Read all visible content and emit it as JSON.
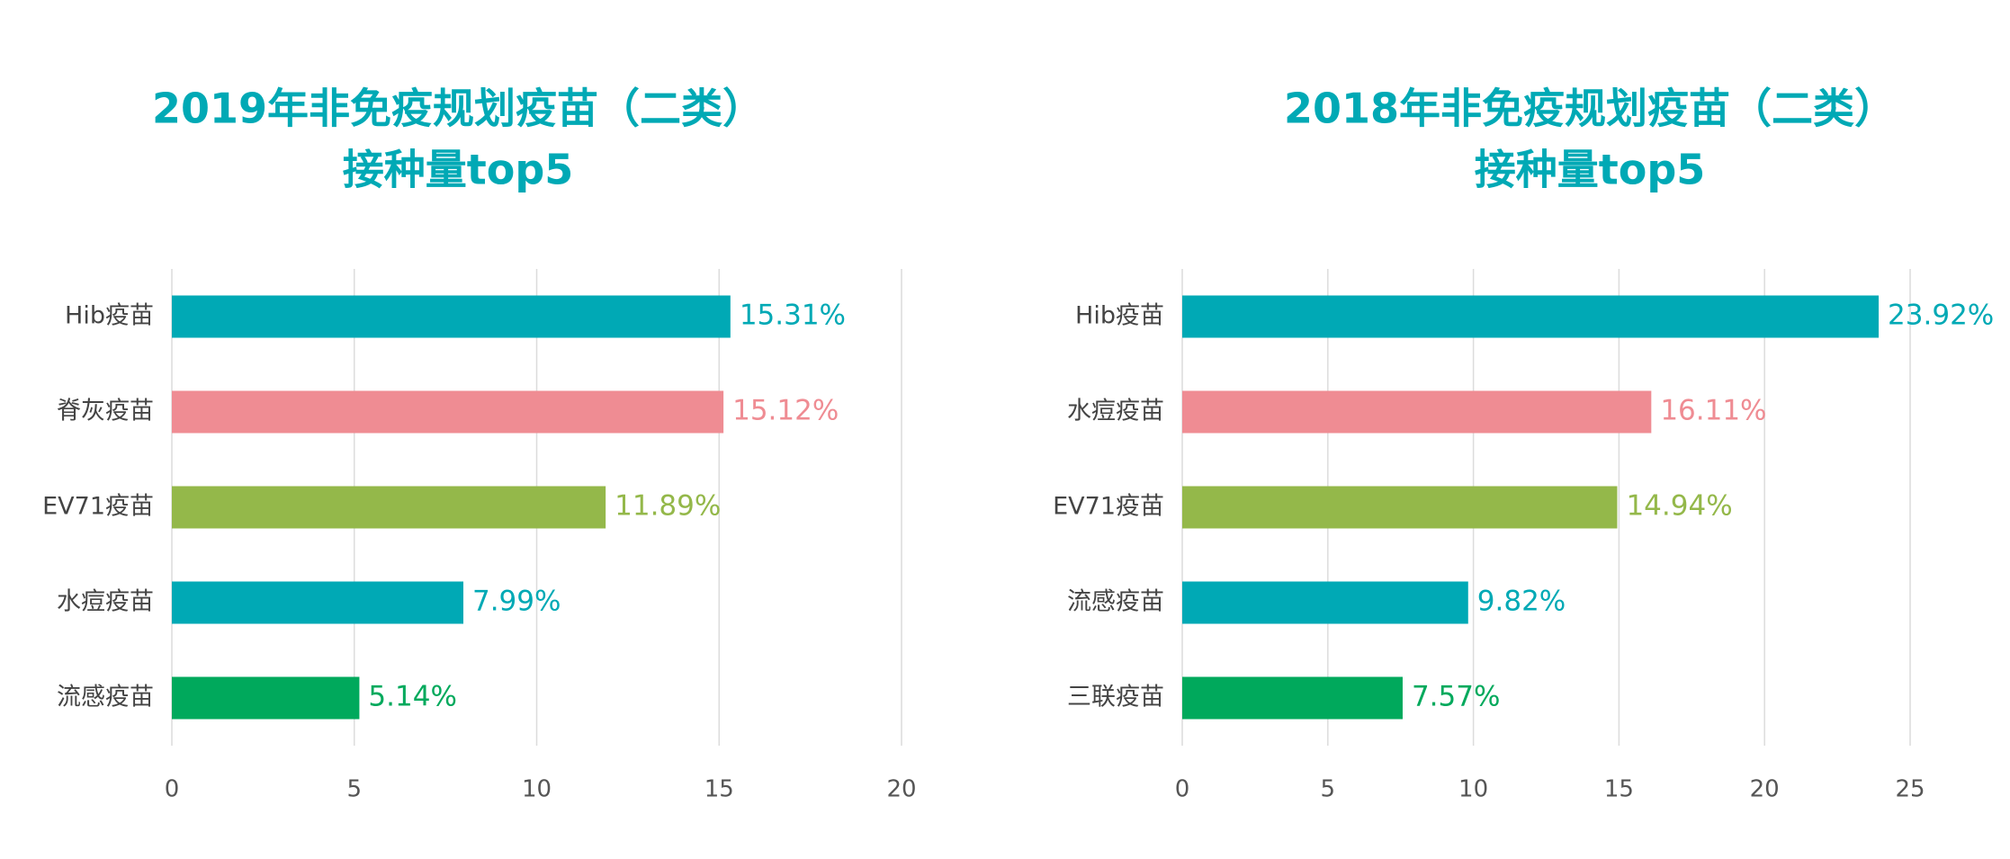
{
  "chart_data": [
    {
      "type": "bar",
      "orientation": "horizontal",
      "title": [
        "2019年非免疫规划疫苗（二类）",
        "接种量top5"
      ],
      "categories": [
        "Hib疫苗",
        "脊灰疫苗",
        "EV71疫苗",
        "水痘疫苗",
        "流感疫苗"
      ],
      "values": [
        15.31,
        15.12,
        11.89,
        7.99,
        5.14
      ],
      "value_labels": [
        "15.31%",
        "15.12%",
        "11.89%",
        "7.99%",
        "5.14%"
      ],
      "colors": [
        "#00a9b5",
        "#ef8c93",
        "#94b84a",
        "#00a9b5",
        "#00a95c"
      ],
      "xlim": [
        0,
        20
      ],
      "xticks": [
        0,
        5,
        10,
        15,
        20
      ],
      "grid": true
    },
    {
      "type": "bar",
      "orientation": "horizontal",
      "title": [
        "2018年非免疫规划疫苗（二类）",
        "接种量top5"
      ],
      "categories": [
        "Hib疫苗",
        "水痘疫苗",
        "EV71疫苗",
        "流感疫苗",
        "三联疫苗"
      ],
      "values": [
        23.92,
        16.11,
        14.94,
        9.82,
        7.57
      ],
      "value_labels": [
        "23.92%",
        "16.11%",
        "14.94%",
        "9.82%",
        "7.57%"
      ],
      "colors": [
        "#00a9b5",
        "#ef8c93",
        "#94b84a",
        "#00a9b5",
        "#00a95c"
      ],
      "xlim": [
        0,
        25
      ],
      "xticks": [
        0,
        5,
        10,
        15,
        20,
        25
      ],
      "grid": true
    }
  ]
}
